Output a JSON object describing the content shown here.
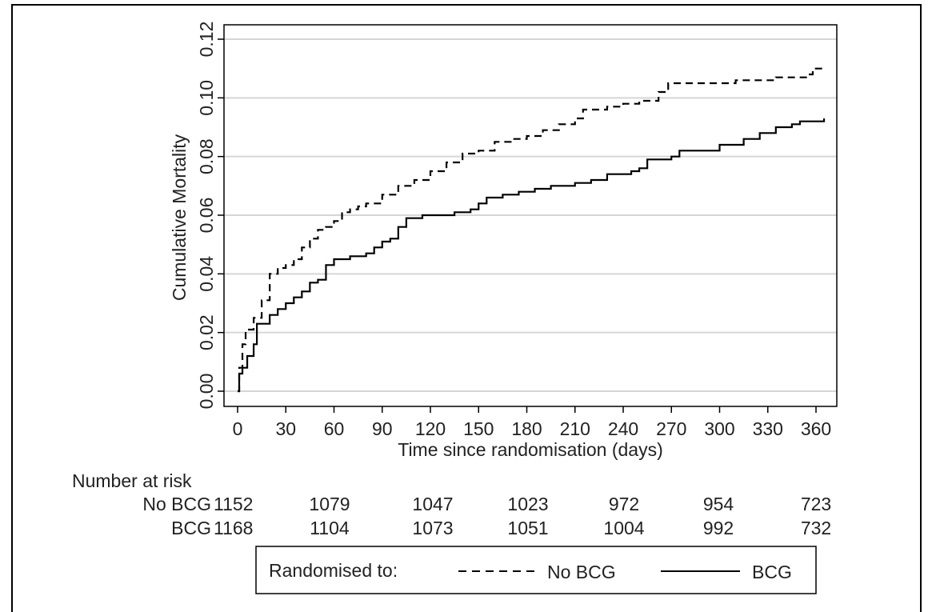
{
  "chart_data": {
    "type": "line",
    "xlabel": "Time since randomisation (days)",
    "ylabel": "Cumulative Mortality",
    "xlim": [
      0,
      365
    ],
    "ylim": [
      0,
      0.12
    ],
    "x_ticks": [
      0,
      30,
      60,
      90,
      120,
      150,
      180,
      210,
      240,
      270,
      300,
      330,
      360
    ],
    "y_ticks": [
      "0.00",
      "0.02",
      "0.04",
      "0.06",
      "0.08",
      "0.10",
      "0.12"
    ],
    "grid": "horizontal",
    "series": [
      {
        "name": "No BCG",
        "line_style": "dashed",
        "color": "#000000",
        "points": [
          [
            0,
            0
          ],
          [
            1,
            0.008
          ],
          [
            3,
            0.016
          ],
          [
            5,
            0.021
          ],
          [
            10,
            0.025
          ],
          [
            15,
            0.031
          ],
          [
            20,
            0.04
          ],
          [
            25,
            0.042
          ],
          [
            30,
            0.043
          ],
          [
            35,
            0.045
          ],
          [
            40,
            0.049
          ],
          [
            45,
            0.052
          ],
          [
            50,
            0.055
          ],
          [
            55,
            0.056
          ],
          [
            60,
            0.058
          ],
          [
            65,
            0.061
          ],
          [
            70,
            0.062
          ],
          [
            75,
            0.063
          ],
          [
            80,
            0.064
          ],
          [
            90,
            0.067
          ],
          [
            100,
            0.07
          ],
          [
            110,
            0.072
          ],
          [
            120,
            0.075
          ],
          [
            130,
            0.078
          ],
          [
            140,
            0.081
          ],
          [
            150,
            0.082
          ],
          [
            160,
            0.085
          ],
          [
            170,
            0.086
          ],
          [
            180,
            0.087
          ],
          [
            190,
            0.089
          ],
          [
            200,
            0.091
          ],
          [
            210,
            0.093
          ],
          [
            215,
            0.096
          ],
          [
            230,
            0.097
          ],
          [
            240,
            0.098
          ],
          [
            250,
            0.099
          ],
          [
            262,
            0.102
          ],
          [
            268,
            0.105
          ],
          [
            290,
            0.105
          ],
          [
            300,
            0.105
          ],
          [
            310,
            0.106
          ],
          [
            330,
            0.106
          ],
          [
            335,
            0.107
          ],
          [
            355,
            0.108
          ],
          [
            358,
            0.11
          ],
          [
            365,
            0.11
          ]
        ]
      },
      {
        "name": "BCG",
        "line_style": "solid",
        "color": "#000000",
        "points": [
          [
            0,
            0
          ],
          [
            1,
            0.006
          ],
          [
            3,
            0.008
          ],
          [
            6,
            0.012
          ],
          [
            10,
            0.016
          ],
          [
            12,
            0.023
          ],
          [
            15,
            0.023
          ],
          [
            20,
            0.026
          ],
          [
            25,
            0.028
          ],
          [
            30,
            0.03
          ],
          [
            35,
            0.032
          ],
          [
            40,
            0.034
          ],
          [
            45,
            0.037
          ],
          [
            50,
            0.038
          ],
          [
            55,
            0.043
          ],
          [
            60,
            0.045
          ],
          [
            65,
            0.045
          ],
          [
            70,
            0.046
          ],
          [
            80,
            0.047
          ],
          [
            85,
            0.049
          ],
          [
            90,
            0.051
          ],
          [
            95,
            0.052
          ],
          [
            100,
            0.056
          ],
          [
            105,
            0.059
          ],
          [
            115,
            0.06
          ],
          [
            125,
            0.06
          ],
          [
            135,
            0.061
          ],
          [
            145,
            0.062
          ],
          [
            150,
            0.064
          ],
          [
            155,
            0.066
          ],
          [
            165,
            0.067
          ],
          [
            175,
            0.068
          ],
          [
            185,
            0.069
          ],
          [
            195,
            0.07
          ],
          [
            210,
            0.071
          ],
          [
            220,
            0.072
          ],
          [
            230,
            0.074
          ],
          [
            245,
            0.075
          ],
          [
            250,
            0.076
          ],
          [
            255,
            0.079
          ],
          [
            270,
            0.08
          ],
          [
            275,
            0.082
          ],
          [
            290,
            0.082
          ],
          [
            300,
            0.084
          ],
          [
            315,
            0.086
          ],
          [
            325,
            0.088
          ],
          [
            335,
            0.09
          ],
          [
            345,
            0.091
          ],
          [
            350,
            0.092
          ],
          [
            365,
            0.093
          ]
        ]
      }
    ],
    "number_at_risk": {
      "title": "Number at risk",
      "rows": [
        {
          "label": "No BCG",
          "values": [
            "1152",
            "1079",
            "1047",
            "1023",
            "972",
            "954",
            "723"
          ]
        },
        {
          "label": "BCG",
          "values": [
            "1168",
            "1104",
            "1073",
            "1051",
            "1004",
            "992",
            "732"
          ]
        }
      ],
      "at_days": [
        0,
        60,
        120,
        180,
        240,
        300,
        360
      ]
    },
    "legend": {
      "title": "Randomised to:",
      "placement": "bottom",
      "entries": [
        "No BCG",
        "BCG"
      ]
    }
  }
}
